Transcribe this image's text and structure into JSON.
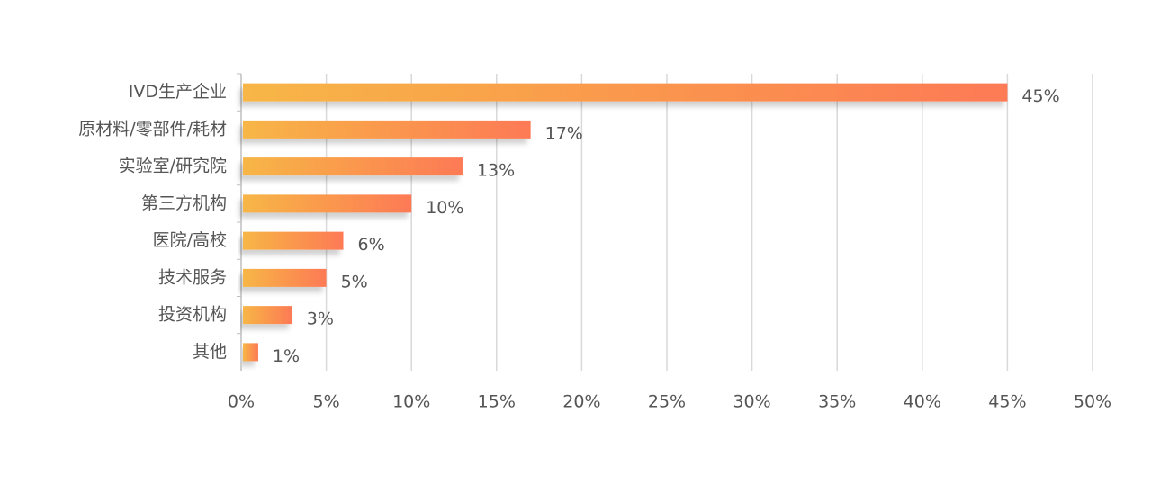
{
  "chart_data": {
    "type": "bar",
    "orientation": "horizontal",
    "categories": [
      "IVD生产企业",
      "原材料/零部件/耗材",
      "实验室/研究院",
      "第三方机构",
      "医院/高校",
      "技术服务",
      "投资机构",
      "其他"
    ],
    "values": [
      45,
      17,
      13,
      10,
      6,
      5,
      3,
      1
    ],
    "value_labels": [
      "45%",
      "17%",
      "13%",
      "10%",
      "6%",
      "5%",
      "3%",
      "1%"
    ],
    "colors": [
      "#f7b646",
      "#fd7a55"
    ],
    "xlim": [
      0,
      50
    ],
    "xticks": [
      {
        "value": 0,
        "label": "0%"
      },
      {
        "value": 5,
        "label": "5%"
      },
      {
        "value": 10,
        "label": "10%"
      },
      {
        "value": 15,
        "label": "15%"
      },
      {
        "value": 20,
        "label": "20%"
      },
      {
        "value": 25,
        "label": "25%"
      },
      {
        "value": 30,
        "label": "30%"
      },
      {
        "value": 35,
        "label": "35%"
      },
      {
        "value": 40,
        "label": "40%"
      },
      {
        "value": 45,
        "label": "45%"
      },
      {
        "value": 50,
        "label": "50%"
      }
    ],
    "grid": true
  }
}
